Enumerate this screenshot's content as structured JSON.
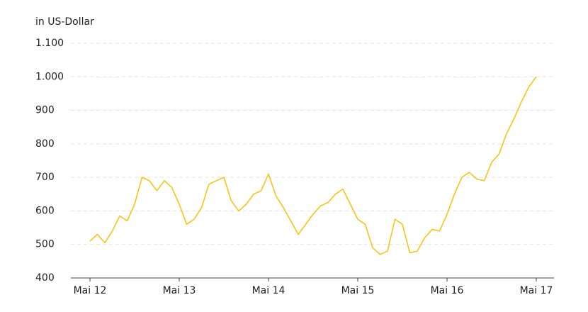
{
  "chart_data": {
    "type": "line",
    "y_axis_label": "in US-Dollar",
    "x": [
      0,
      1,
      2,
      3,
      4,
      5,
      6,
      7,
      8,
      9,
      10,
      11,
      12,
      13,
      14,
      15,
      16,
      17,
      18,
      19,
      20,
      21,
      22,
      23,
      24,
      25,
      26,
      27,
      28,
      29,
      30,
      31,
      32,
      33,
      34,
      35,
      36,
      37,
      38,
      39,
      40,
      41,
      42,
      43,
      44,
      45,
      46,
      47,
      48,
      49,
      50,
      51,
      52,
      53,
      54,
      55,
      56,
      57,
      58,
      59,
      60
    ],
    "series": [
      {
        "color": "#f5c518",
        "values": [
          510,
          530,
          505,
          540,
          585,
          570,
          620,
          700,
          690,
          660,
          690,
          670,
          620,
          560,
          575,
          610,
          680,
          690,
          700,
          630,
          600,
          620,
          650,
          660,
          710,
          645,
          610,
          570,
          530,
          560,
          590,
          615,
          625,
          650,
          665,
          620,
          575,
          560,
          490,
          470,
          480,
          575,
          560,
          475,
          480,
          520,
          545,
          540,
          590,
          650,
          700,
          715,
          695,
          690,
          745,
          770,
          830,
          875,
          925,
          970,
          1000
        ]
      }
    ],
    "xlim": [
      0,
      60
    ],
    "xticks": [
      {
        "value": 0,
        "label": "Mai 12"
      },
      {
        "value": 12,
        "label": "Mai 13"
      },
      {
        "value": 24,
        "label": "Mai 14"
      },
      {
        "value": 36,
        "label": "Mai 15"
      },
      {
        "value": 48,
        "label": "Mai 16"
      },
      {
        "value": 60,
        "label": "Mai 17"
      }
    ],
    "ylim": [
      400,
      1100
    ],
    "yticks": [
      400,
      500,
      600,
      700,
      800,
      900,
      {
        "value": 1000,
        "label": "1.000"
      },
      {
        "value": 1100,
        "label": "1.100"
      }
    ],
    "grid": true
  }
}
